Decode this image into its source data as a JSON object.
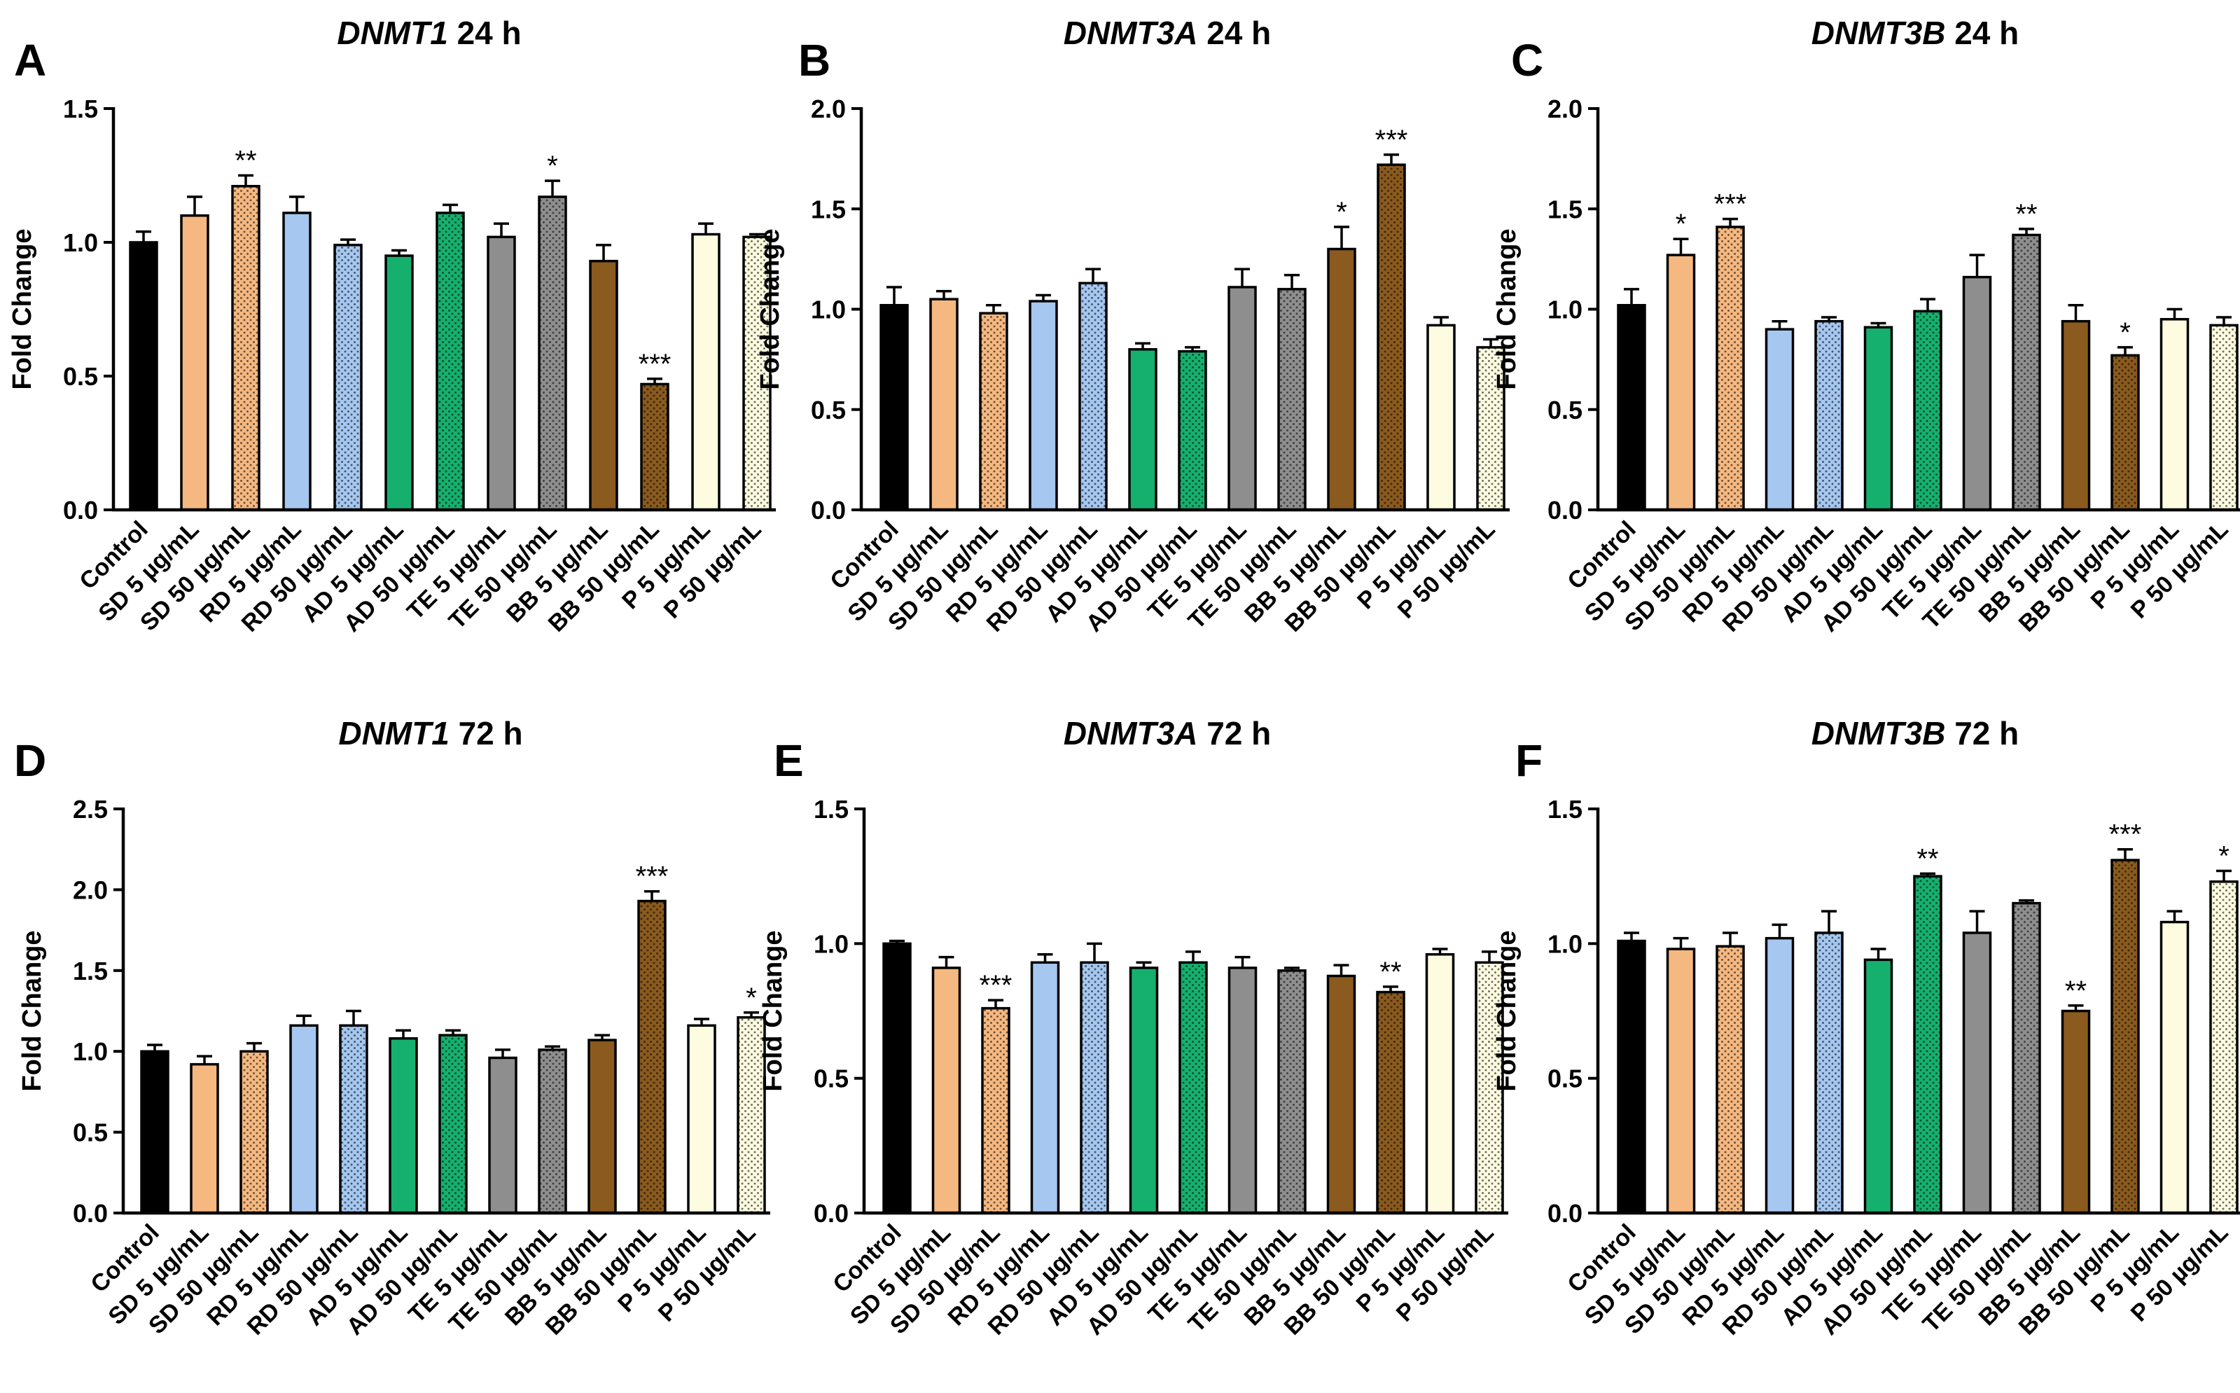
{
  "figure": {
    "categories": [
      "Control",
      "SD 5 µg/mL",
      "SD 50 µg/mL",
      "RD 5 µg/mL",
      "RD 50 µg/mL",
      "AD 5 µg/mL",
      "AD 50 µg/mL",
      "TE 5 µg/mL",
      "TE 50 µg/mL",
      "BB 5 µg/mL",
      "BB 50 µg/mL",
      "P 5 µg/mL",
      "P 50 µg/mL"
    ],
    "ylabel": "Fold Change",
    "colors": {
      "control": "#000000",
      "SD": "#f5b880",
      "RD": "#a5c7f0",
      "AD": "#16b06e",
      "TE": "#8e8e8e",
      "BB": "#8a5a1e",
      "P": "#fdfbe0"
    },
    "pattern_rule": "50 µg/mL bars are dotted"
  },
  "chart_data": [
    {
      "panel": "A",
      "type": "bar",
      "title_gene": "DNMT1",
      "title_time": "24 h",
      "ylim": [
        0,
        1.5
      ],
      "yticks": [
        "0.0",
        "0.5",
        "1.0",
        "1.5"
      ],
      "values": [
        1.0,
        1.1,
        1.21,
        1.11,
        0.99,
        0.95,
        1.11,
        1.02,
        1.17,
        0.93,
        0.47,
        1.03,
        1.02
      ],
      "errors": [
        0.04,
        0.07,
        0.04,
        0.06,
        0.02,
        0.02,
        0.03,
        0.05,
        0.06,
        0.06,
        0.02,
        0.04,
        0.01
      ],
      "significance": [
        "",
        "",
        "**",
        "",
        "",
        "",
        "",
        "",
        "*",
        "",
        "***",
        "",
        ""
      ]
    },
    {
      "panel": "B",
      "type": "bar",
      "title_gene": "DNMT3A",
      "title_time": "24 h",
      "ylim": [
        0,
        2.0
      ],
      "yticks": [
        "0.0",
        "0.5",
        "1.0",
        "1.5",
        "2.0"
      ],
      "values": [
        1.02,
        1.05,
        0.98,
        1.04,
        1.13,
        0.8,
        0.79,
        1.11,
        1.1,
        1.3,
        1.72,
        0.92,
        0.81
      ],
      "errors": [
        0.09,
        0.04,
        0.04,
        0.03,
        0.07,
        0.03,
        0.02,
        0.09,
        0.07,
        0.11,
        0.05,
        0.04,
        0.04
      ],
      "significance": [
        "",
        "",
        "",
        "",
        "",
        "",
        "",
        "",
        "",
        "*",
        "***",
        "",
        ""
      ]
    },
    {
      "panel": "C",
      "type": "bar",
      "title_gene": "DNMT3B",
      "title_time": "24 h",
      "ylim": [
        0,
        2.0
      ],
      "yticks": [
        "0.0",
        "0.5",
        "1.0",
        "1.5",
        "2.0"
      ],
      "values": [
        1.02,
        1.27,
        1.41,
        0.9,
        0.94,
        0.91,
        0.99,
        1.16,
        1.37,
        0.94,
        0.77,
        0.95,
        0.92
      ],
      "errors": [
        0.08,
        0.08,
        0.04,
        0.04,
        0.02,
        0.02,
        0.06,
        0.11,
        0.03,
        0.08,
        0.04,
        0.05,
        0.04
      ],
      "significance": [
        "",
        "*",
        "***",
        "",
        "",
        "",
        "",
        "",
        "**",
        "",
        "*",
        "",
        ""
      ]
    },
    {
      "panel": "D",
      "type": "bar",
      "title_gene": "DNMT1",
      "title_time": "72 h",
      "ylim": [
        0,
        2.5
      ],
      "yticks": [
        "0.0",
        "0.5",
        "1.0",
        "1.5",
        "2.0",
        "2.5"
      ],
      "values": [
        1.0,
        0.92,
        1.0,
        1.16,
        1.16,
        1.08,
        1.1,
        0.96,
        1.01,
        1.07,
        1.93,
        1.16,
        1.21
      ],
      "errors": [
        0.04,
        0.05,
        0.05,
        0.06,
        0.09,
        0.05,
        0.03,
        0.05,
        0.02,
        0.03,
        0.06,
        0.04,
        0.03
      ],
      "significance": [
        "",
        "",
        "",
        "",
        "",
        "",
        "",
        "",
        "",
        "",
        "***",
        "",
        "*"
      ]
    },
    {
      "panel": "E",
      "type": "bar",
      "title_gene": "DNMT3A",
      "title_time": "72 h",
      "ylim": [
        0,
        1.5
      ],
      "yticks": [
        "0.0",
        "0.5",
        "1.0",
        "1.5"
      ],
      "values": [
        1.0,
        0.91,
        0.76,
        0.93,
        0.93,
        0.91,
        0.93,
        0.91,
        0.9,
        0.88,
        0.82,
        0.96,
        0.93
      ],
      "errors": [
        0.01,
        0.04,
        0.03,
        0.03,
        0.07,
        0.02,
        0.04,
        0.04,
        0.01,
        0.04,
        0.02,
        0.02,
        0.04
      ],
      "significance": [
        "",
        "",
        "***",
        "",
        "",
        "",
        "",
        "",
        "",
        "",
        "**",
        "",
        ""
      ]
    },
    {
      "panel": "F",
      "type": "bar",
      "title_gene": "DNMT3B",
      "title_time": "72 h",
      "ylim": [
        0,
        1.5
      ],
      "yticks": [
        "0.0",
        "0.5",
        "1.0",
        "1.5"
      ],
      "values": [
        1.01,
        0.98,
        0.99,
        1.02,
        1.04,
        0.94,
        1.25,
        1.04,
        1.15,
        0.75,
        1.31,
        1.08,
        1.23
      ],
      "errors": [
        0.03,
        0.04,
        0.05,
        0.05,
        0.08,
        0.04,
        0.01,
        0.08,
        0.01,
        0.02,
        0.04,
        0.04,
        0.04
      ],
      "significance": [
        "",
        "",
        "",
        "",
        "",
        "",
        "**",
        "",
        "",
        "**",
        "***",
        "",
        "*"
      ]
    }
  ]
}
